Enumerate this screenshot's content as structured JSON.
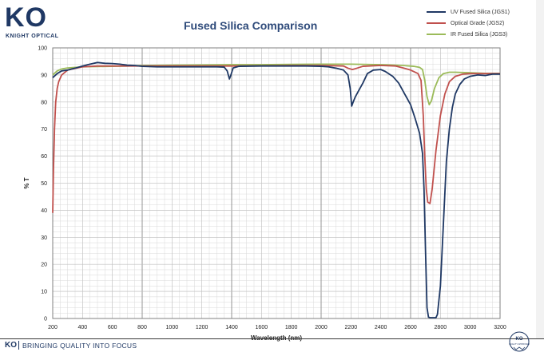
{
  "brand": {
    "logo_text": "KO",
    "logo_subtitle": "KNIGHT OPTICAL",
    "footer_text": "BRINGING QUALITY INTO FOCUS",
    "seal_text_top": "KO",
    "seal_text_bottom": "QUALITY APPROVED",
    "color": "#1f3864"
  },
  "chart_data": {
    "type": "line",
    "title": "Fused Silica Comparison",
    "xlabel": "Wavelength (nm)",
    "ylabel": "% T",
    "xlim": [
      200,
      3200
    ],
    "ylim": [
      0,
      100
    ],
    "xticks": [
      200,
      400,
      600,
      800,
      1000,
      1200,
      1400,
      1600,
      1800,
      2000,
      2200,
      2400,
      2600,
      2800,
      3000,
      3200
    ],
    "yticks": [
      0,
      10,
      20,
      30,
      40,
      50,
      60,
      70,
      80,
      90,
      100
    ],
    "grid": true,
    "legend_position": "top-right",
    "series": [
      {
        "name": "UV Fused Silica (JGS1)",
        "color": "#1f3864",
        "points": [
          [
            200,
            89
          ],
          [
            230,
            90.5
          ],
          [
            260,
            91.5
          ],
          [
            300,
            91.8
          ],
          [
            350,
            92.5
          ],
          [
            400,
            93.3
          ],
          [
            450,
            94
          ],
          [
            500,
            94.6
          ],
          [
            550,
            94.3
          ],
          [
            600,
            94.2
          ],
          [
            650,
            94
          ],
          [
            700,
            93.6
          ],
          [
            750,
            93.5
          ],
          [
            800,
            93.2
          ],
          [
            900,
            93
          ],
          [
            1000,
            93
          ],
          [
            1100,
            93
          ],
          [
            1200,
            93
          ],
          [
            1300,
            93
          ],
          [
            1350,
            92.9
          ],
          [
            1370,
            91.5
          ],
          [
            1385,
            88.5
          ],
          [
            1395,
            90
          ],
          [
            1410,
            92.6
          ],
          [
            1450,
            93.2
          ],
          [
            1600,
            93.3
          ],
          [
            1800,
            93.3
          ],
          [
            1900,
            93.3
          ],
          [
            2000,
            93.2
          ],
          [
            2050,
            93
          ],
          [
            2100,
            92.5
          ],
          [
            2150,
            91.8
          ],
          [
            2180,
            90
          ],
          [
            2195,
            85
          ],
          [
            2205,
            78.5
          ],
          [
            2215,
            80
          ],
          [
            2230,
            82
          ],
          [
            2250,
            84
          ],
          [
            2280,
            87
          ],
          [
            2310,
            90.5
          ],
          [
            2350,
            91.8
          ],
          [
            2400,
            92
          ],
          [
            2430,
            91.3
          ],
          [
            2480,
            89.5
          ],
          [
            2520,
            87
          ],
          [
            2560,
            83
          ],
          [
            2600,
            79
          ],
          [
            2630,
            74
          ],
          [
            2660,
            68.5
          ],
          [
            2680,
            61
          ],
          [
            2690,
            48
          ],
          [
            2700,
            25
          ],
          [
            2710,
            4
          ],
          [
            2720,
            0.5
          ],
          [
            2730,
            0.3
          ],
          [
            2770,
            0.3
          ],
          [
            2780,
            1.5
          ],
          [
            2800,
            12
          ],
          [
            2820,
            35
          ],
          [
            2840,
            58
          ],
          [
            2860,
            70
          ],
          [
            2880,
            78
          ],
          [
            2900,
            83
          ],
          [
            2930,
            86.5
          ],
          [
            2960,
            88.5
          ],
          [
            3000,
            89.5
          ],
          [
            3050,
            90
          ],
          [
            3100,
            89.8
          ],
          [
            3150,
            90.3
          ],
          [
            3200,
            90.3
          ]
        ]
      },
      {
        "name": "Optical Grade (JGS2)",
        "color": "#c0504d",
        "points": [
          [
            200,
            39
          ],
          [
            205,
            55
          ],
          [
            212,
            70
          ],
          [
            220,
            80
          ],
          [
            230,
            85
          ],
          [
            240,
            87.5
          ],
          [
            260,
            90
          ],
          [
            300,
            91.8
          ],
          [
            400,
            93
          ],
          [
            500,
            93.3
          ],
          [
            600,
            93.3
          ],
          [
            700,
            93.3
          ],
          [
            800,
            93.3
          ],
          [
            1000,
            93.3
          ],
          [
            1200,
            93.3
          ],
          [
            1400,
            93.3
          ],
          [
            1600,
            93.4
          ],
          [
            1800,
            93.5
          ],
          [
            2000,
            93.5
          ],
          [
            2150,
            93.3
          ],
          [
            2180,
            92.5
          ],
          [
            2210,
            92
          ],
          [
            2240,
            92.5
          ],
          [
            2280,
            93.2
          ],
          [
            2400,
            93.5
          ],
          [
            2500,
            93.3
          ],
          [
            2550,
            92.6
          ],
          [
            2600,
            91.8
          ],
          [
            2650,
            90.5
          ],
          [
            2670,
            88
          ],
          [
            2685,
            75
          ],
          [
            2695,
            60
          ],
          [
            2705,
            48
          ],
          [
            2715,
            43
          ],
          [
            2730,
            42.5
          ],
          [
            2745,
            48
          ],
          [
            2770,
            62
          ],
          [
            2800,
            75
          ],
          [
            2830,
            83
          ],
          [
            2860,
            87.5
          ],
          [
            2900,
            89.5
          ],
          [
            2950,
            90.3
          ],
          [
            3000,
            90.5
          ],
          [
            3100,
            90.5
          ],
          [
            3200,
            90.5
          ]
        ]
      },
      {
        "name": "IR Fused Silica (JGS3)",
        "color": "#9bbb59",
        "points": [
          [
            200,
            90
          ],
          [
            230,
            91.5
          ],
          [
            260,
            92.2
          ],
          [
            300,
            92.6
          ],
          [
            400,
            93
          ],
          [
            500,
            93.1
          ],
          [
            600,
            93.2
          ],
          [
            700,
            93.3
          ],
          [
            800,
            93.5
          ],
          [
            1000,
            93.6
          ],
          [
            1200,
            93.7
          ],
          [
            1400,
            93.8
          ],
          [
            1600,
            93.8
          ],
          [
            1800,
            93.9
          ],
          [
            2000,
            94
          ],
          [
            2200,
            94
          ],
          [
            2400,
            93.8
          ],
          [
            2550,
            93.5
          ],
          [
            2620,
            93.2
          ],
          [
            2660,
            92.8
          ],
          [
            2680,
            92
          ],
          [
            2695,
            88
          ],
          [
            2710,
            82
          ],
          [
            2725,
            79
          ],
          [
            2740,
            80.5
          ],
          [
            2760,
            85
          ],
          [
            2790,
            89
          ],
          [
            2820,
            90.5
          ],
          [
            2860,
            91
          ],
          [
            2900,
            91
          ],
          [
            3000,
            90.8
          ],
          [
            3100,
            90.6
          ],
          [
            3200,
            90.6
          ]
        ]
      }
    ]
  }
}
